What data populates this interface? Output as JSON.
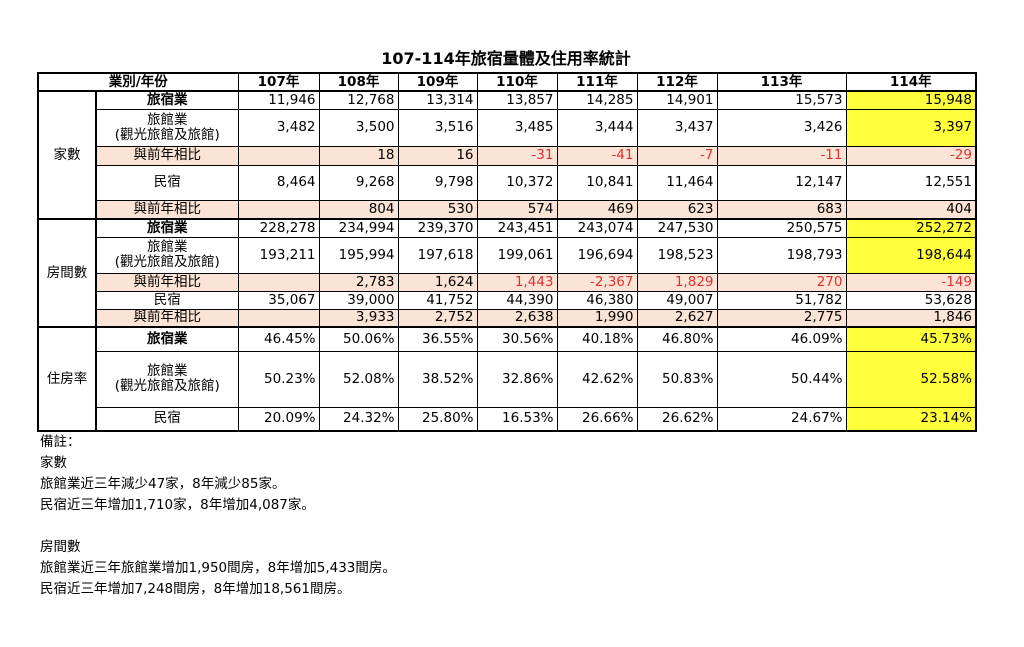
{
  "title": "107-114年旅宿量體及住用率統計",
  "header": {
    "category": "業別/年份",
    "years": [
      "107年",
      "108年",
      "109年",
      "110年",
      "111年",
      "112年",
      "113年",
      "114年"
    ]
  },
  "colors": {
    "highlight": "#ffff3c",
    "compare_row": "#fbe4d5",
    "negative_or_flag": "#e03030"
  },
  "groups": [
    {
      "name": "家數",
      "rows": [
        {
          "label": "旅宿業",
          "bold": true,
          "values": [
            "11,946",
            "12,768",
            "13,314",
            "13,857",
            "14,285",
            "14,901",
            "15,573",
            "15,948"
          ],
          "highlight_last": true,
          "h": 18
        },
        {
          "label": "旅館業\n(觀光旅館及旅館)",
          "values": [
            "3,482",
            "3,500",
            "3,516",
            "3,485",
            "3,444",
            "3,437",
            "3,426",
            "3,397"
          ],
          "highlight_last": true,
          "h": 37
        },
        {
          "label": "與前年相比",
          "compare": true,
          "values": [
            "",
            "18",
            "16",
            "-31",
            "-41",
            "-7",
            "-11",
            "-29"
          ],
          "red_from_index": 3,
          "h": 19
        },
        {
          "label": "民宿",
          "values": [
            "8,464",
            "9,268",
            "9,798",
            "10,372",
            "10,841",
            "11,464",
            "12,147",
            "12,551"
          ],
          "h": 35
        },
        {
          "label": "與前年相比",
          "compare": true,
          "values": [
            "",
            "804",
            "530",
            "574",
            "469",
            "623",
            "683",
            "404"
          ],
          "h": 19
        }
      ]
    },
    {
      "name": "房間數",
      "rows": [
        {
          "label": "旅宿業",
          "bold": true,
          "values": [
            "228,278",
            "234,994",
            "239,370",
            "243,451",
            "243,074",
            "247,530",
            "250,575",
            "252,272"
          ],
          "highlight_last": true,
          "h": 18
        },
        {
          "label": "旅館業\n(觀光旅館及旅館)",
          "values": [
            "193,211",
            "195,994",
            "197,618",
            "199,061",
            "196,694",
            "198,523",
            "198,793",
            "198,644"
          ],
          "highlight_last": true,
          "h": 36
        },
        {
          "label": "與前年相比",
          "compare": true,
          "values": [
            "",
            "2,783",
            "1,624",
            "1,443",
            "-2,367",
            "1,829",
            "270",
            "-149"
          ],
          "red_from_index": 3,
          "h": 18
        },
        {
          "label": "民宿",
          "values": [
            "35,067",
            "39,000",
            "41,752",
            "44,390",
            "46,380",
            "49,007",
            "51,782",
            "53,628"
          ],
          "h": 18
        },
        {
          "label": "與前年相比",
          "compare": true,
          "values": [
            "",
            "3,933",
            "2,752",
            "2,638",
            "1,990",
            "2,627",
            "2,775",
            "1,846"
          ],
          "h": 18
        }
      ]
    },
    {
      "name": "住房率",
      "rows": [
        {
          "label": "旅宿業",
          "bold": true,
          "values": [
            "46.45%",
            "50.06%",
            "36.55%",
            "30.56%",
            "40.18%",
            "46.80%",
            "46.09%",
            "45.73%"
          ],
          "highlight_last": true,
          "h": 24
        },
        {
          "label": "旅館業\n(觀光旅館及旅館)",
          "values": [
            "50.23%",
            "52.08%",
            "38.52%",
            "32.86%",
            "42.62%",
            "50.83%",
            "50.44%",
            "52.58%"
          ],
          "highlight_last": true,
          "h": 56
        },
        {
          "label": "民宿",
          "values": [
            "20.09%",
            "24.32%",
            "25.80%",
            "16.53%",
            "26.66%",
            "26.62%",
            "24.67%",
            "23.14%"
          ],
          "highlight_last": true,
          "h": 24
        }
      ]
    }
  ],
  "notes": [
    "備註：",
    "家數",
    "旅館業近三年減少47家，8年減少85家。",
    "民宿近三年增加1,710家，8年增加4,087家。",
    "",
    "房間數",
    "旅館業近三年旅館業增加1,950間房，8年增加5,433間房。",
    "民宿近三年增加7,248間房，8年增加18,561間房。"
  ]
}
